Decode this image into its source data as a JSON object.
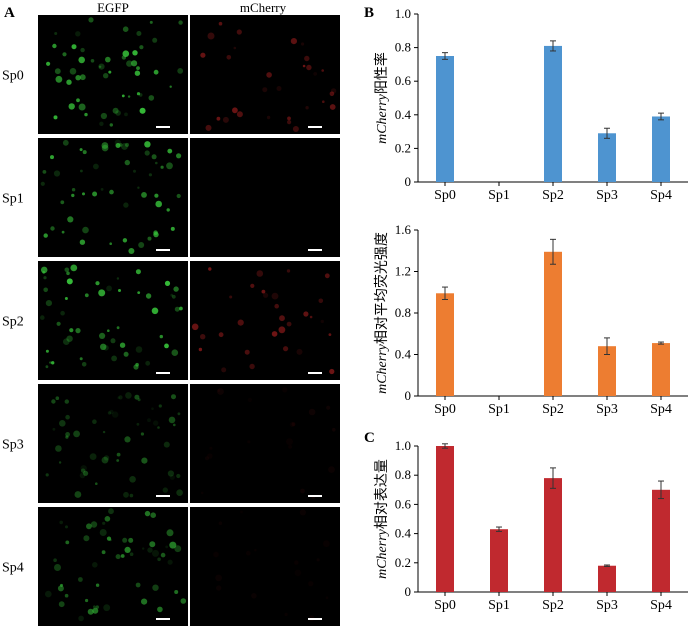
{
  "panel_labels": {
    "a": "A",
    "b": "B",
    "c": "C"
  },
  "micro": {
    "columns": [
      "EGFP",
      "mCherry"
    ],
    "rows": [
      "Sp0",
      "Sp1",
      "Sp2",
      "Sp3",
      "Sp4"
    ],
    "egfp_color": "#37c23a",
    "mcherry_color": "#c22424",
    "egfp_intensity": [
      0.9,
      0.85,
      1.0,
      0.45,
      0.7
    ],
    "mcherry_intensity": [
      0.55,
      0.0,
      0.6,
      0.08,
      0.05
    ]
  },
  "chart_data": [
    {
      "type": "bar",
      "panel": "B",
      "categories": [
        "Sp0",
        "Sp1",
        "Sp2",
        "Sp3",
        "Sp4"
      ],
      "values": [
        0.75,
        0,
        0.81,
        0.29,
        0.39
      ],
      "errors": [
        0.02,
        0,
        0.03,
        0.03,
        0.02
      ],
      "ylabel_italic": "mCherry",
      "ylabel_rest": "阳性率",
      "ylim": [
        0,
        1.0
      ],
      "yticks": [
        "0",
        "0.2",
        "0.4",
        "0.6",
        "0.8",
        "1.0"
      ],
      "color": "#4e94d0"
    },
    {
      "type": "bar",
      "panel": "",
      "categories": [
        "Sp0",
        "Sp1",
        "Sp2",
        "Sp3",
        "Sp4"
      ],
      "values": [
        0.99,
        0,
        1.39,
        0.48,
        0.51
      ],
      "errors": [
        0.06,
        0,
        0.12,
        0.08,
        0.01
      ],
      "ylabel_italic": "mCherry",
      "ylabel_rest": "相对平均荧光强度",
      "ylim": [
        0,
        1.6
      ],
      "yticks": [
        "0",
        "0.4",
        "0.8",
        "1.2",
        "1.6"
      ],
      "color": "#ed7d31"
    },
    {
      "type": "bar",
      "panel": "C",
      "categories": [
        "Sp0",
        "Sp1",
        "Sp2",
        "Sp3",
        "Sp4"
      ],
      "values": [
        1.0,
        0.43,
        0.78,
        0.18,
        0.7
      ],
      "errors": [
        0.015,
        0.015,
        0.07,
        0.005,
        0.06
      ],
      "ylabel_italic": "mCherry",
      "ylabel_rest": "相对表达量",
      "ylim": [
        0,
        1.0
      ],
      "yticks": [
        "0",
        "0.2",
        "0.4",
        "0.6",
        "0.8",
        "1.0"
      ],
      "color": "#c0292f"
    }
  ]
}
